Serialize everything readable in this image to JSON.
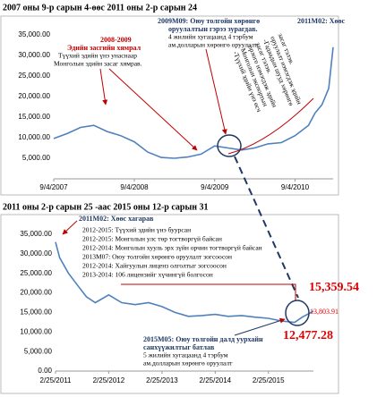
{
  "chart_data": [
    {
      "type": "line",
      "title": "2007 оны 9-р сарын 4-өөс 2011 оны 2-р сарын 24",
      "x": [
        "9/4/2007",
        "11/4/2007",
        "1/4/2008",
        "3/4/2008",
        "5/4/2008",
        "7/4/2008",
        "9/4/2008",
        "11/4/2008",
        "1/4/2009",
        "3/4/2009",
        "5/4/2009",
        "7/4/2009",
        "9/4/2009",
        "11/4/2009",
        "1/4/2010",
        "3/4/2010",
        "5/4/2010",
        "7/4/2010",
        "9/4/2010",
        "11/4/2010",
        "12/4/2010",
        "1/4/2011",
        "2/4/2011",
        "2/24/2011"
      ],
      "series": [
        {
          "color": "#4f81bd",
          "values": [
            9800,
            11000,
            12500,
            13000,
            11500,
            10500,
            9000,
            6500,
            5200,
            5000,
            5300,
            6000,
            8000,
            7500,
            7000,
            7500,
            8500,
            8800,
            10500,
            13000,
            16000,
            18000,
            22000,
            32000
          ]
        }
      ],
      "xlim": [
        "9/4/2007",
        "2/24/2011"
      ],
      "xticks": [
        "9/4/2007",
        "9/4/2008",
        "9/4/2009",
        "9/4/2010"
      ],
      "ylim": [
        0,
        35000
      ],
      "yticks": [
        {
          "value": 5000,
          "label": "5,000.00"
        },
        {
          "value": 10000,
          "label": "10,000.00"
        },
        {
          "value": 15000,
          "label": "15,000.00"
        },
        {
          "value": 20000,
          "label": "20,000.00"
        },
        {
          "value": 25000,
          "label": "25,000.00"
        },
        {
          "value": 30000,
          "label": "30,000.00"
        },
        {
          "value": 35000,
          "label": "35,000.00"
        }
      ],
      "grid": false,
      "annotations": [
        [
          "2008-2009",
          "Эдийн засгийн хямрал",
          "Түүхий эдийн үнэ унаснаар",
          "Монголын эдийн засаг хямрав."
        ],
        [
          "2009М09: Оюу толгойн хөрөнгө",
          "оруулалтын гэрээ зурагдав.",
          "4 жилийн хугацаанд 4 тэрбум",
          "ам.долларын хөрөнгө оруулалт"
        ],
        [
          "2011М02: Хөөс"
        ],
        [
          "-Түүхий эдийн үнэ өсч",
          "Монголын экспортын",
          "орлого нэмэгдэж эдийн",
          "засаг тэлэв.",
          "-Гадаадын шууд хөрөнгө",
          "оруулалт нэмэгдэж эдийн",
          "засаг тэлэв."
        ]
      ]
    },
    {
      "type": "line",
      "title": "2011 оны 2-р сарын 25 -аас 2015 оны 12-р сарын 31",
      "x": [
        "2/25/2011",
        "3/25/2011",
        "5/25/2011",
        "7/25/2011",
        "9/25/2011",
        "11/25/2011",
        "2/25/2012",
        "5/25/2012",
        "8/25/2012",
        "11/25/2012",
        "2/25/2013",
        "5/25/2013",
        "8/25/2013",
        "11/25/2013",
        "2/25/2014",
        "5/25/2014",
        "8/25/2014",
        "11/25/2014",
        "2/25/2015",
        "5/25/2015",
        "8/24/2015",
        "10/15/2015",
        "12/31/2015"
      ],
      "series": [
        {
          "color": "#4f81bd",
          "values": [
            33000,
            29000,
            25000,
            22000,
            19000,
            17500,
            19500,
            17500,
            17000,
            17500,
            16500,
            15000,
            14000,
            14200,
            14500,
            14000,
            14200,
            13800,
            13500,
            12800,
            12477.28,
            13803.91,
            15359.54
          ],
          "value_labels": [
            null,
            null,
            null,
            null,
            null,
            null,
            null,
            null,
            null,
            null,
            null,
            null,
            null,
            null,
            null,
            null,
            null,
            null,
            null,
            null,
            "12,477.28",
            "13,803.91",
            "15,359.54"
          ]
        }
      ],
      "xlim": [
        "2/25/2011",
        "12/31/2015"
      ],
      "xticks": [
        "2/25/2011",
        "2/25/2012",
        "2/25/2013",
        "2/25/2014",
        "2/25/2015"
      ],
      "ylim": [
        0,
        35000
      ],
      "yticks": [
        {
          "value": 0,
          "label": "0.00"
        },
        {
          "value": 5000,
          "label": "5,000.00"
        },
        {
          "value": 10000,
          "label": "10,000.00"
        },
        {
          "value": 15000,
          "label": "15,000.00"
        },
        {
          "value": 20000,
          "label": "20,000.00"
        },
        {
          "value": 25000,
          "label": "25,000.00"
        },
        {
          "value": 30000,
          "label": "30,000.00"
        },
        {
          "value": 35000,
          "label": "35,000.00"
        }
      ],
      "grid": false,
      "annotations": [
        [
          "2011М02: Хөөс хагарав"
        ],
        [
          "2012-2015: Түүхий эдийн үнэ буурсан",
          "2012-2015: Монголын улс төр тогтворгүй байсан",
          "2012-2014: Монголын хууль эрх зүйн орчин тогтворгүй байсан",
          "2013М07: Оюу толгойн хөрөнгө оруулалт зогсоосон",
          "2012-2014: Хайгуулын лиценз олголтыг зогсоосон",
          "2013-2014: 106 лицензийг хүчингүй болгосон"
        ],
        [
          "2015М05: Оюу толгойн далд уурхайн",
          "санхүүжилтыг батлав",
          "5 жилийн хугацаанд 4 тэрбум",
          "ам.долларын хөрөнгө оруулалт"
        ]
      ]
    }
  ]
}
